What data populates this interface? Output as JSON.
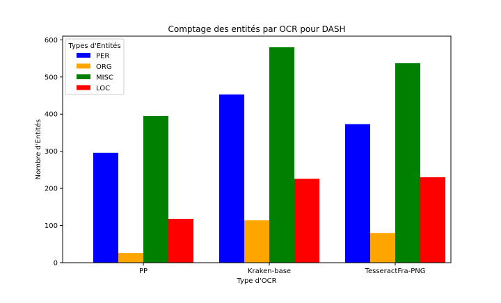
{
  "chart_data": {
    "type": "bar",
    "title": "Comptage des entités par OCR pour DASH",
    "xlabel": "Type d'OCR",
    "ylabel": "Nombre d'Entités",
    "categories": [
      "PP",
      "Kraken-base",
      "TesseractFra-PNG"
    ],
    "series": [
      {
        "name": "PER",
        "color": "#0000ff",
        "values": [
          296,
          453,
          373
        ]
      },
      {
        "name": "ORG",
        "color": "#ffa500",
        "values": [
          26,
          114,
          80
        ]
      },
      {
        "name": "MISC",
        "color": "#008000",
        "values": [
          395,
          580,
          537
        ]
      },
      {
        "name": "LOC",
        "color": "#ff0000",
        "values": [
          118,
          226,
          230
        ]
      }
    ],
    "ylim": [
      0,
      610
    ],
    "yticks": [
      0,
      100,
      200,
      300,
      400,
      500,
      600
    ],
    "grid": false,
    "legend": {
      "title": "Types d'Entités",
      "placement": "top-left"
    }
  }
}
